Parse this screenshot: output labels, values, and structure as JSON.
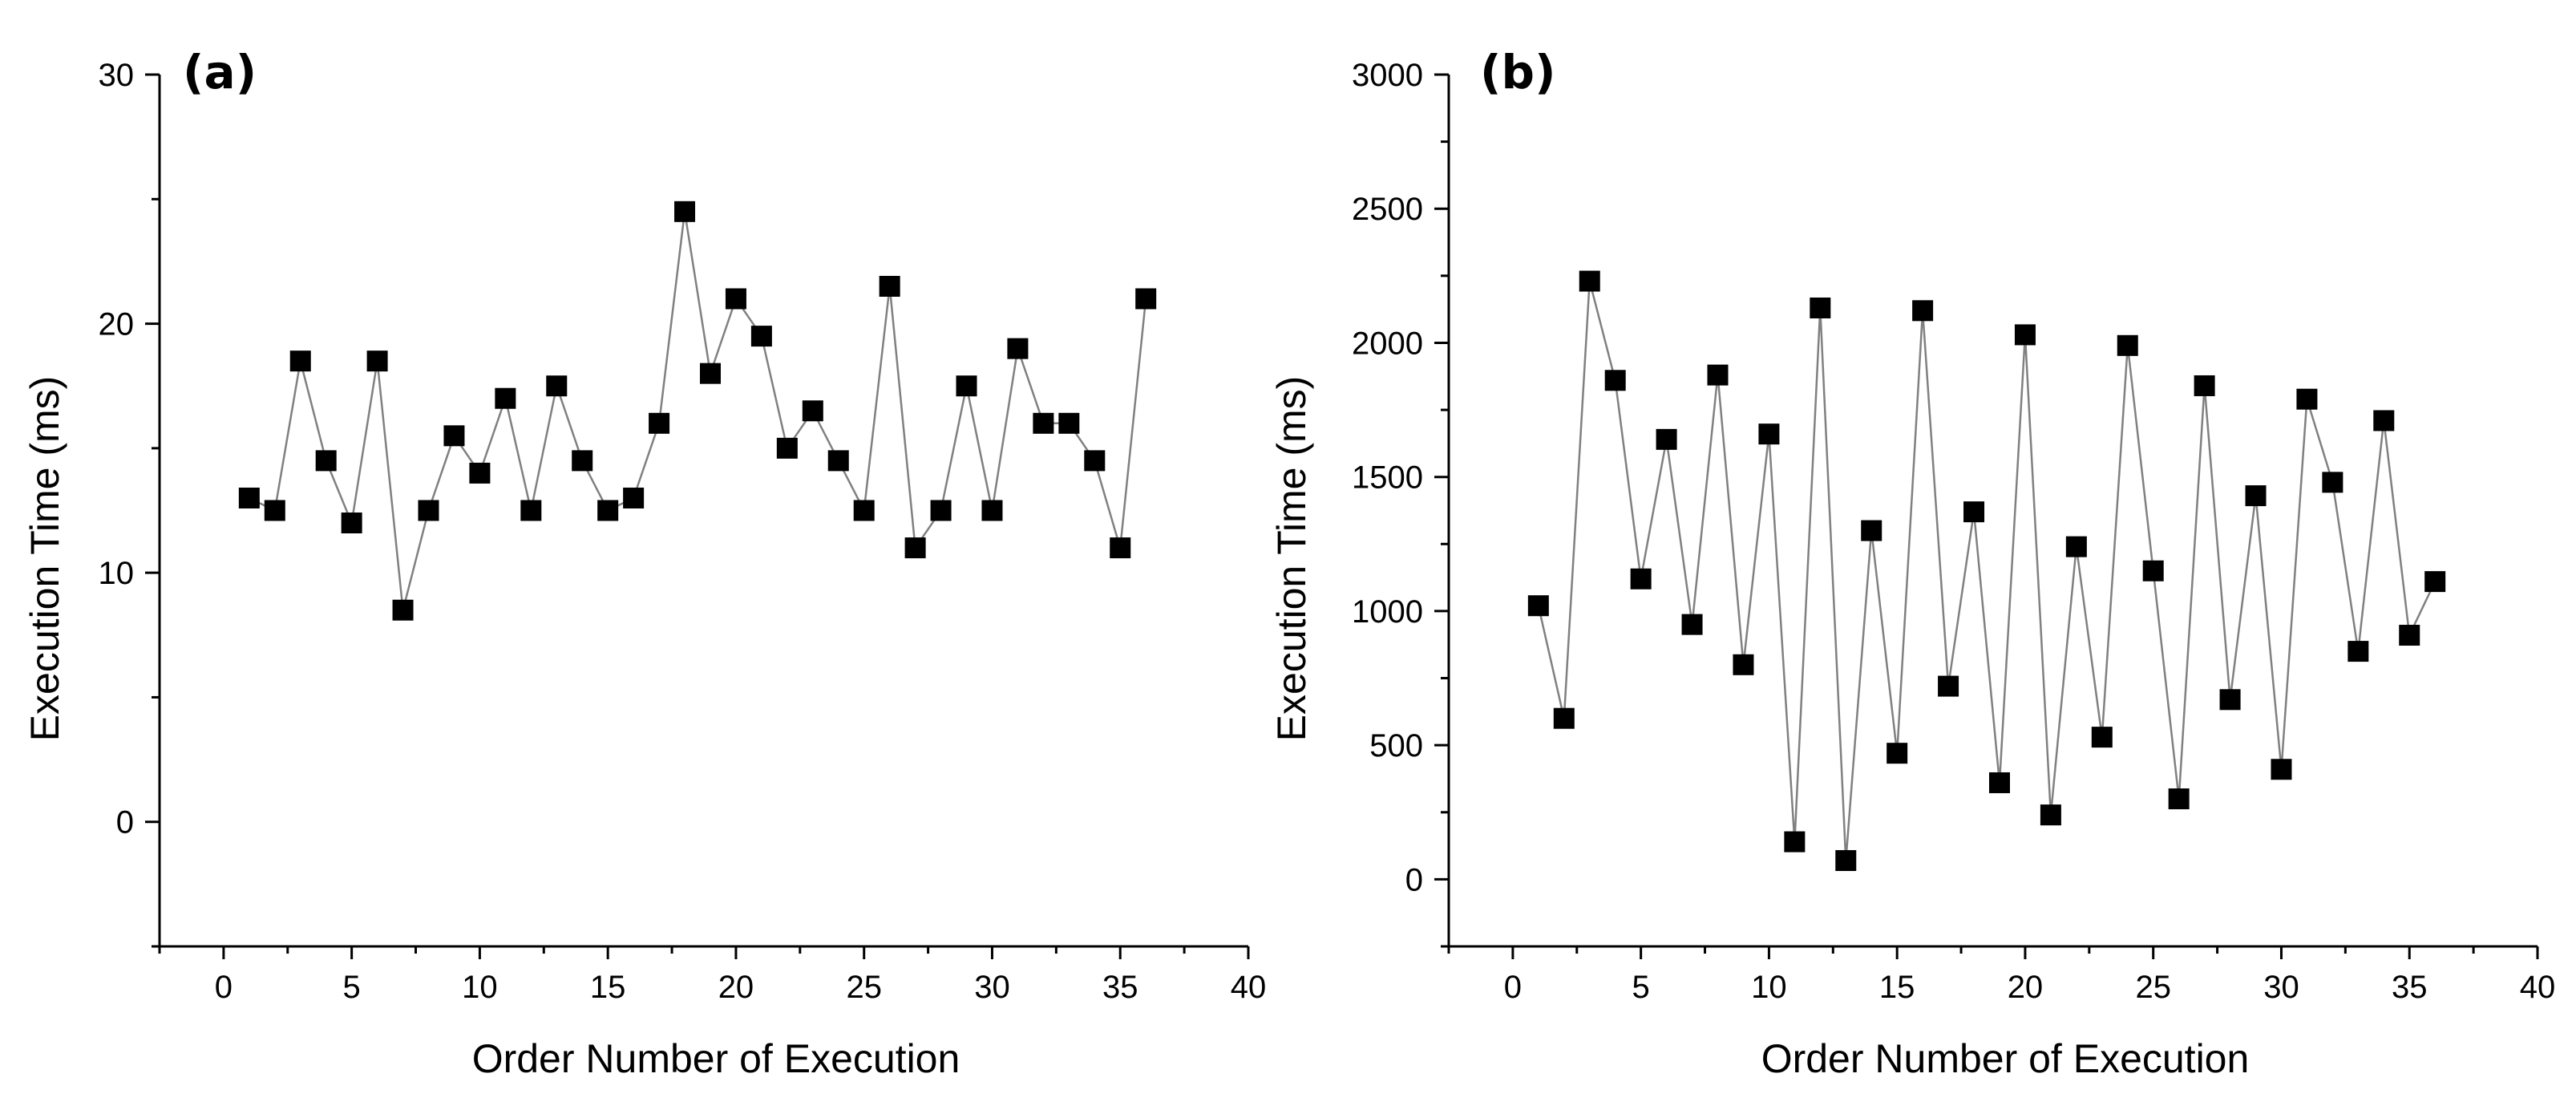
{
  "chart_data": [
    {
      "type": "line",
      "panel_label": "(a)",
      "title": "",
      "xlabel": "Order Number of Execution",
      "ylabel": "Execution Time (ms)",
      "xlim": [
        -2.5,
        40
      ],
      "ylim": [
        -5,
        30
      ],
      "xticks": [
        0,
        5,
        10,
        15,
        20,
        25,
        30,
        35,
        40
      ],
      "yticks": [
        0,
        10,
        20,
        30
      ],
      "y_minor_ticks": [
        -5,
        5,
        15,
        25
      ],
      "marker": "square",
      "line_color": "#808080",
      "marker_color": "#000000",
      "grid": false,
      "x": [
        1,
        2,
        3,
        4,
        5,
        6,
        7,
        8,
        9,
        10,
        11,
        12,
        13,
        14,
        15,
        16,
        17,
        18,
        19,
        20,
        21,
        22,
        23,
        24,
        25,
        26,
        27,
        28,
        29,
        30,
        31,
        32,
        33,
        34,
        35,
        36
      ],
      "y": [
        13,
        12.5,
        18.5,
        14.5,
        12,
        18.5,
        8.5,
        12.5,
        15.5,
        14,
        17,
        12.5,
        17.5,
        14.5,
        12.5,
        13,
        16,
        24.5,
        18,
        21,
        19.5,
        15,
        16.5,
        14.5,
        12.5,
        21.5,
        11,
        12.5,
        17.5,
        12.5,
        19,
        16,
        16,
        14.5,
        11,
        21
      ]
    },
    {
      "type": "line",
      "panel_label": "(b)",
      "title": "",
      "xlabel": "Order Number of Execution",
      "ylabel": "Execution Time (ms)",
      "xlim": [
        -2.5,
        40
      ],
      "ylim": [
        -250,
        3000
      ],
      "xticks": [
        0,
        5,
        10,
        15,
        20,
        25,
        30,
        35,
        40
      ],
      "yticks": [
        0,
        500,
        1000,
        1500,
        2000,
        2500,
        3000
      ],
      "y_minor_ticks": [
        -250,
        250,
        750,
        1250,
        1750,
        2250,
        2750
      ],
      "marker": "square",
      "line_color": "#808080",
      "marker_color": "#000000",
      "grid": false,
      "x": [
        1,
        2,
        3,
        4,
        5,
        6,
        7,
        8,
        9,
        10,
        11,
        12,
        13,
        14,
        15,
        16,
        17,
        18,
        19,
        20,
        21,
        22,
        23,
        24,
        25,
        26,
        27,
        28,
        29,
        30,
        31,
        32,
        33,
        34,
        35,
        36
      ],
      "y": [
        1020,
        600,
        2230,
        1860,
        1120,
        1640,
        950,
        1880,
        800,
        1660,
        140,
        2130,
        70,
        1300,
        470,
        2120,
        720,
        1370,
        360,
        2030,
        240,
        1240,
        530,
        1990,
        1150,
        300,
        1840,
        670,
        1430,
        410,
        1790,
        1480,
        850,
        1710,
        910,
        1110
      ]
    }
  ]
}
